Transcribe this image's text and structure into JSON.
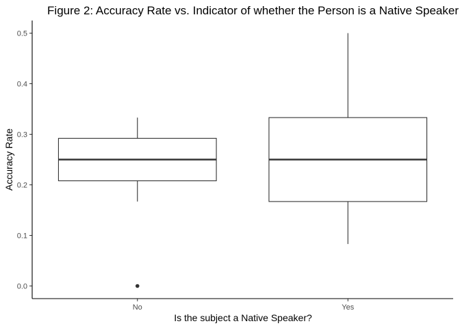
{
  "chart_data": {
    "type": "boxplot",
    "title": "Figure 2: Accuracy Rate vs. Indicator of whether the Person is a Native Speaker",
    "xlabel": "Is the subject a Native Speaker?",
    "ylabel": "Accuracy Rate",
    "categories": [
      "No",
      "Yes"
    ],
    "ylim": [
      -0.025,
      0.525
    ],
    "yticks": [
      0.0,
      0.1,
      0.2,
      0.3,
      0.4,
      0.5
    ],
    "ytick_labels": [
      "0.0",
      "0.1",
      "0.2",
      "0.3",
      "0.4",
      "0.5"
    ],
    "grid": false,
    "boxes": [
      {
        "category": "No",
        "whisker_low": 0.167,
        "q1": 0.208,
        "median": 0.25,
        "q3": 0.292,
        "whisker_high": 0.333,
        "outliers": [
          0.0
        ]
      },
      {
        "category": "Yes",
        "whisker_low": 0.083,
        "q1": 0.167,
        "median": 0.25,
        "q3": 0.333,
        "whisker_high": 0.5,
        "outliers": []
      }
    ],
    "colors": {
      "box_line": "#333333",
      "box_fill": "#ffffff",
      "axis": "#000000",
      "tick_text": "#4d4d4d"
    }
  }
}
